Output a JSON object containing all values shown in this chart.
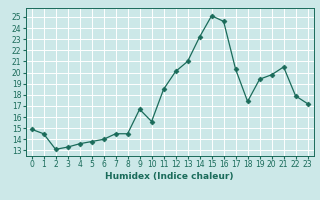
{
  "x": [
    0,
    1,
    2,
    3,
    4,
    5,
    6,
    7,
    8,
    9,
    10,
    11,
    12,
    13,
    14,
    15,
    16,
    17,
    18,
    19,
    20,
    21,
    22,
    23
  ],
  "y": [
    14.9,
    14.5,
    13.1,
    13.3,
    13.6,
    13.8,
    14.0,
    14.5,
    14.5,
    16.7,
    15.6,
    18.5,
    20.1,
    21.0,
    23.2,
    25.1,
    24.6,
    20.3,
    17.4,
    19.4,
    19.8,
    20.5,
    17.9,
    17.2
  ],
  "xlabel": "Humidex (Indice chaleur)",
  "ylabel": "",
  "ylim": [
    12.5,
    25.8
  ],
  "xlim": [
    -0.5,
    23.5
  ],
  "yticks": [
    13,
    14,
    15,
    16,
    17,
    18,
    19,
    20,
    21,
    22,
    23,
    24,
    25
  ],
  "xticks": [
    0,
    1,
    2,
    3,
    4,
    5,
    6,
    7,
    8,
    9,
    10,
    11,
    12,
    13,
    14,
    15,
    16,
    17,
    18,
    19,
    20,
    21,
    22,
    23
  ],
  "line_color": "#1a6b5a",
  "marker": "D",
  "marker_size": 2.5,
  "bg_color": "#cce8e8",
  "grid_color": "#ffffff",
  "label_fontsize": 6.5,
  "tick_fontsize": 5.5
}
